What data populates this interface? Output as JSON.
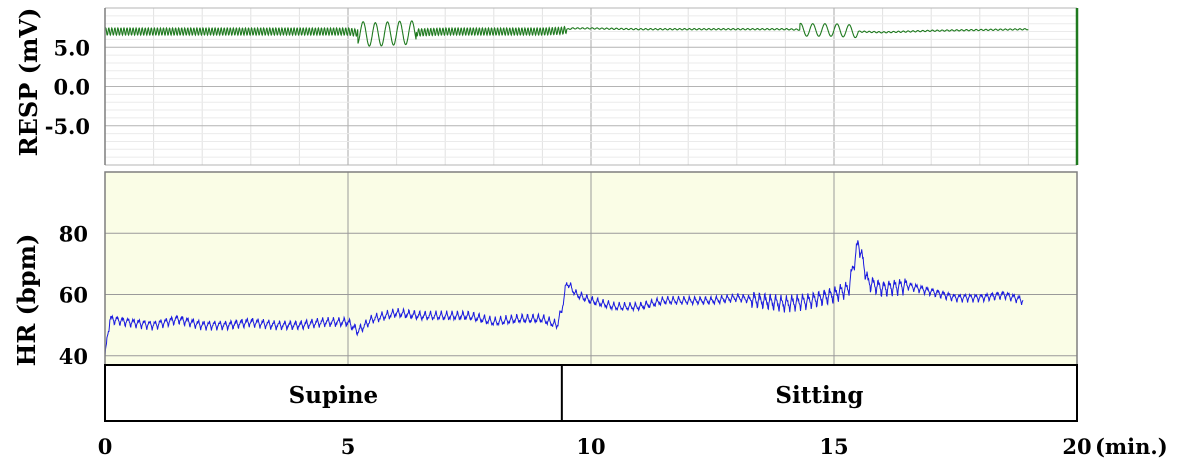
{
  "chart_data": [
    {
      "type": "line",
      "ylabel": "RESP (mV)",
      "ylim": [
        -10,
        10
      ],
      "yticks": [
        5.0,
        0.0,
        -5.0
      ],
      "ytick_labels": [
        "5.0",
        "0.0",
        "-5.0"
      ],
      "xlim": [
        0,
        20
      ],
      "grid": true,
      "series": [
        {
          "color": "#1f7a1f",
          "x": [
            0,
            1,
            2,
            3,
            4,
            5,
            5.5,
            6,
            6.5,
            7,
            8,
            9,
            9.4,
            9.6,
            10,
            11,
            12,
            13,
            14,
            14.5,
            15,
            15.5,
            16,
            17,
            18,
            19
          ],
          "y": [
            7.0,
            7.0,
            7.0,
            7.0,
            7.0,
            7.0,
            6.6,
            6.8,
            6.9,
            7.0,
            7.0,
            7.0,
            7.1,
            7.4,
            7.4,
            7.3,
            7.3,
            7.3,
            7.3,
            7.2,
            7.2,
            7.0,
            6.9,
            7.1,
            7.2,
            7.3
          ]
        }
      ]
    },
    {
      "type": "line",
      "ylabel": "HR (bpm)",
      "ylim": [
        37,
        100
      ],
      "yticks": [
        40,
        60,
        80
      ],
      "ytick_labels": [
        "40",
        "60",
        "80"
      ],
      "xlim": [
        0,
        20
      ],
      "xticks": [
        0,
        5,
        10,
        15,
        20
      ],
      "xtick_labels": [
        "0",
        "5",
        "10",
        "15",
        "20"
      ],
      "xunit": "(min.)",
      "grid": true,
      "background": "#fafde6",
      "series": [
        {
          "color": "#1a1adf",
          "x": [
            0,
            0.1,
            0.5,
            1,
            1.5,
            2,
            2.5,
            3,
            3.5,
            4,
            4.5,
            5,
            5.2,
            5.5,
            6,
            6.5,
            7,
            7.5,
            8,
            8.5,
            9,
            9.3,
            9.4,
            9.5,
            9.7,
            10,
            10.5,
            11,
            11.5,
            12,
            12.5,
            13,
            13.5,
            14,
            14.5,
            15,
            15.3,
            15.5,
            15.7,
            16,
            16.5,
            17,
            17.5,
            18,
            18.5,
            18.9
          ],
          "y": [
            40,
            52,
            51,
            50,
            52,
            50,
            50,
            51,
            50,
            50,
            51,
            51,
            48,
            52,
            54,
            53,
            53,
            53,
            51,
            52,
            52,
            50,
            55,
            64,
            60,
            58,
            56,
            56,
            58,
            58,
            58,
            59,
            58,
            57,
            58,
            60,
            62,
            77,
            64,
            62,
            63,
            61,
            59,
            59,
            60,
            58
          ]
        }
      ]
    }
  ],
  "phases": [
    {
      "label": "Supine",
      "start": 0,
      "end": 9.4
    },
    {
      "label": "Sitting",
      "start": 9.4,
      "end": 20
    }
  ]
}
